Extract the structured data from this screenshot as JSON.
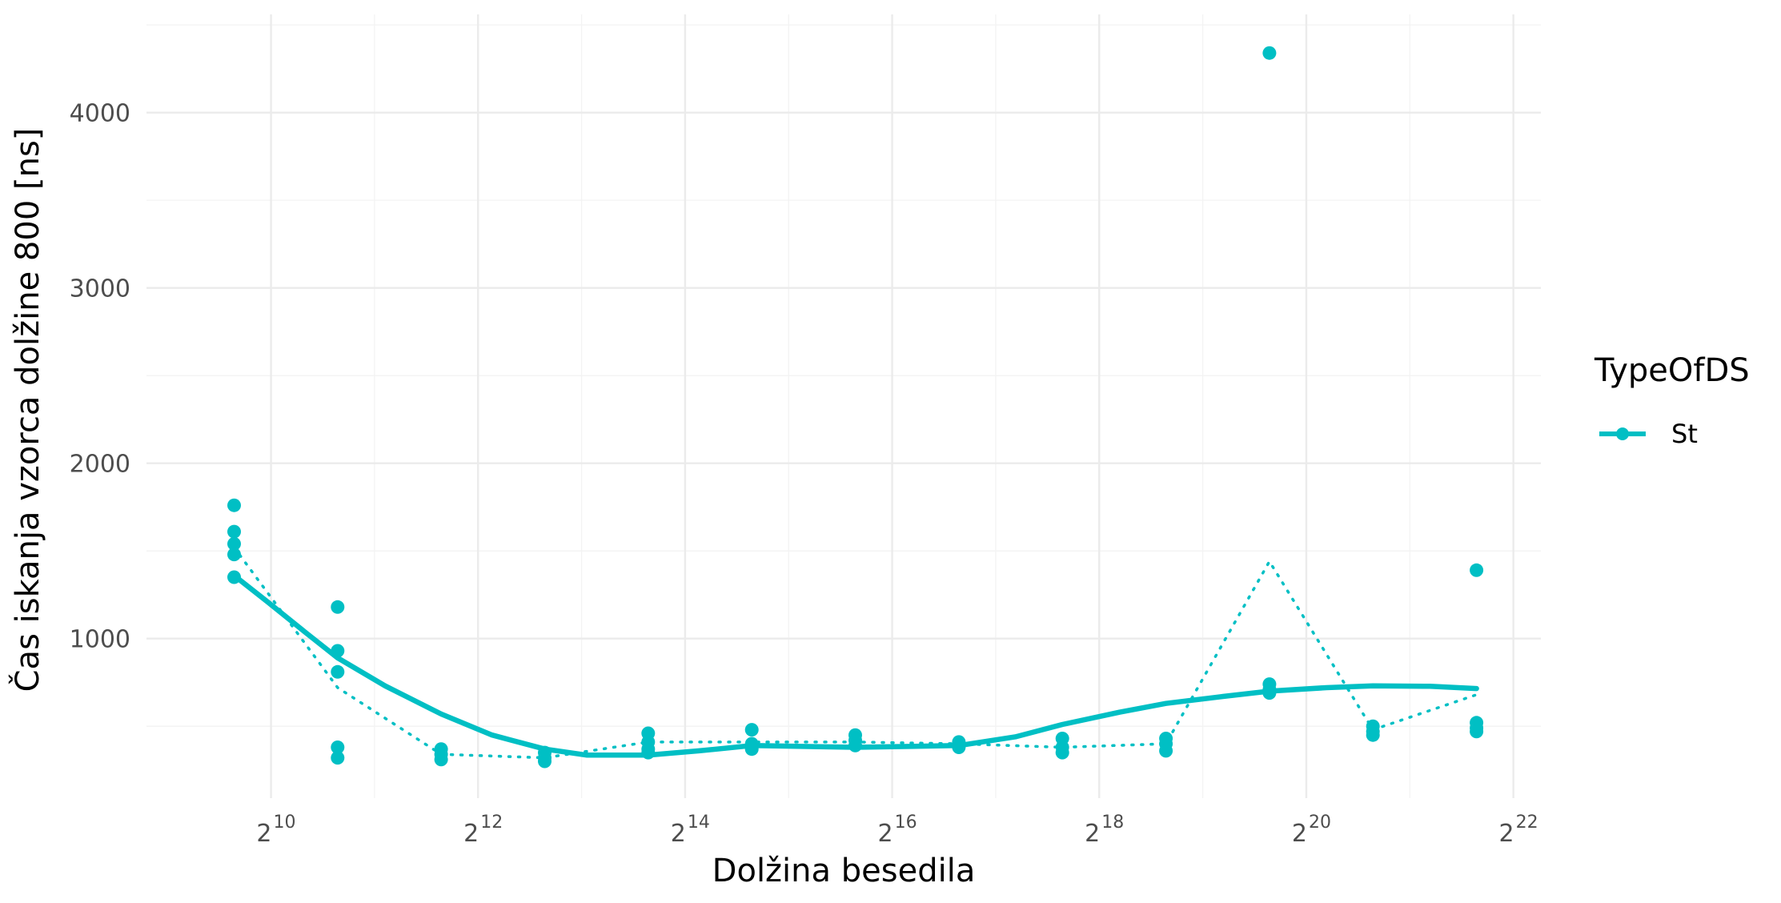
{
  "chart_data": {
    "type": "scatter",
    "xlabel": "Dolžina besedila",
    "ylabel": "Čas iskanja vzorca dolžine 800 [ns]",
    "x_scale": "log2",
    "x_ticks": [
      {
        "base": "2",
        "exp": "10",
        "value": 1024
      },
      {
        "base": "2",
        "exp": "12",
        "value": 4096
      },
      {
        "base": "2",
        "exp": "14",
        "value": 16384
      },
      {
        "base": "2",
        "exp": "16",
        "value": 65536
      },
      {
        "base": "2",
        "exp": "18",
        "value": 262144
      },
      {
        "base": "2",
        "exp": "20",
        "value": 1048576
      },
      {
        "base": "2",
        "exp": "22",
        "value": 4194304
      }
    ],
    "y_ticks": [
      "1000",
      "2000",
      "3000",
      "4000"
    ],
    "xlim": [
      445,
      5042000
    ],
    "ylim": [
      90,
      4560
    ],
    "grid": true,
    "legend": {
      "title": "TypeOfDS",
      "placement": "right",
      "entries": [
        {
          "label": "St",
          "color": "#00BFC4"
        }
      ]
    },
    "series": [
      {
        "name": "St",
        "color": "#00BFC4",
        "points": [
          {
            "x": 800,
            "y": 1760
          },
          {
            "x": 800,
            "y": 1610
          },
          {
            "x": 800,
            "y": 1540
          },
          {
            "x": 800,
            "y": 1480
          },
          {
            "x": 800,
            "y": 1350
          },
          {
            "x": 1600,
            "y": 1180
          },
          {
            "x": 1600,
            "y": 930
          },
          {
            "x": 1600,
            "y": 810
          },
          {
            "x": 1600,
            "y": 380
          },
          {
            "x": 1600,
            "y": 320
          },
          {
            "x": 3200,
            "y": 370
          },
          {
            "x": 3200,
            "y": 340
          },
          {
            "x": 3200,
            "y": 310
          },
          {
            "x": 6400,
            "y": 350
          },
          {
            "x": 6400,
            "y": 320
          },
          {
            "x": 6400,
            "y": 300
          },
          {
            "x": 12800,
            "y": 460
          },
          {
            "x": 12800,
            "y": 410
          },
          {
            "x": 12800,
            "y": 370
          },
          {
            "x": 12800,
            "y": 350
          },
          {
            "x": 25600,
            "y": 480
          },
          {
            "x": 25600,
            "y": 400
          },
          {
            "x": 25600,
            "y": 380
          },
          {
            "x": 25600,
            "y": 370
          },
          {
            "x": 51200,
            "y": 450
          },
          {
            "x": 51200,
            "y": 420
          },
          {
            "x": 51200,
            "y": 390
          },
          {
            "x": 102400,
            "y": 410
          },
          {
            "x": 102400,
            "y": 390
          },
          {
            "x": 102400,
            "y": 380
          },
          {
            "x": 204800,
            "y": 430
          },
          {
            "x": 204800,
            "y": 380
          },
          {
            "x": 204800,
            "y": 350
          },
          {
            "x": 409600,
            "y": 430
          },
          {
            "x": 409600,
            "y": 400
          },
          {
            "x": 409600,
            "y": 360
          },
          {
            "x": 819200,
            "y": 4340
          },
          {
            "x": 819200,
            "y": 740
          },
          {
            "x": 819200,
            "y": 710
          },
          {
            "x": 819200,
            "y": 690
          },
          {
            "x": 1638400,
            "y": 500
          },
          {
            "x": 1638400,
            "y": 470
          },
          {
            "x": 1638400,
            "y": 450
          },
          {
            "x": 3276800,
            "y": 1390
          },
          {
            "x": 3276800,
            "y": 520
          },
          {
            "x": 3276800,
            "y": 490
          },
          {
            "x": 3276800,
            "y": 470
          }
        ],
        "smooth": [
          {
            "x": 800,
            "y": 1360
          },
          {
            "x": 1000,
            "y": 1210
          },
          {
            "x": 1300,
            "y": 1030
          },
          {
            "x": 1600,
            "y": 890
          },
          {
            "x": 2200,
            "y": 730
          },
          {
            "x": 3200,
            "y": 570
          },
          {
            "x": 4500,
            "y": 450
          },
          {
            "x": 6400,
            "y": 370
          },
          {
            "x": 8500,
            "y": 335
          },
          {
            "x": 12800,
            "y": 335
          },
          {
            "x": 18000,
            "y": 360
          },
          {
            "x": 25600,
            "y": 390
          },
          {
            "x": 51200,
            "y": 380
          },
          {
            "x": 102400,
            "y": 390
          },
          {
            "x": 150000,
            "y": 440
          },
          {
            "x": 204800,
            "y": 510
          },
          {
            "x": 300000,
            "y": 580
          },
          {
            "x": 409600,
            "y": 630
          },
          {
            "x": 600000,
            "y": 670
          },
          {
            "x": 819200,
            "y": 700
          },
          {
            "x": 1200000,
            "y": 720
          },
          {
            "x": 1638400,
            "y": 730
          },
          {
            "x": 2400000,
            "y": 728
          },
          {
            "x": 3276800,
            "y": 715
          }
        ],
        "mean": [
          {
            "x": 800,
            "y": 1520
          },
          {
            "x": 1600,
            "y": 720
          },
          {
            "x": 3200,
            "y": 340
          },
          {
            "x": 6400,
            "y": 320
          },
          {
            "x": 12800,
            "y": 410
          },
          {
            "x": 25600,
            "y": 410
          },
          {
            "x": 51200,
            "y": 410
          },
          {
            "x": 102400,
            "y": 400
          },
          {
            "x": 204800,
            "y": 380
          },
          {
            "x": 409600,
            "y": 400
          },
          {
            "x": 819200,
            "y": 1440
          },
          {
            "x": 1638400,
            "y": 480
          },
          {
            "x": 3276800,
            "y": 680
          }
        ]
      }
    ]
  }
}
